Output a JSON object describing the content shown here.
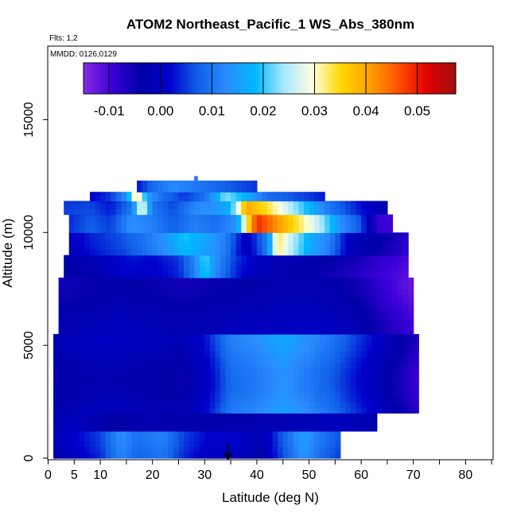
{
  "chart_data": {
    "type": "heatmap",
    "title": "ATOM2 Northeast_Pacific_1 WS_Abs_380nm",
    "flights_note": "Flts: 1,2",
    "dates_note": "MMDD: 0126,0129",
    "xlabel": "Latitude (deg N)",
    "ylabel": "Altitude (m)",
    "xlim": [
      0,
      85
    ],
    "ylim": [
      0,
      18000
    ],
    "x_ticks": [
      0,
      5,
      10,
      20,
      30,
      40,
      50,
      60,
      70,
      80
    ],
    "x_minor_ticks": [
      15,
      25,
      35,
      45,
      55,
      65,
      75,
      85
    ],
    "y_ticks": [
      0,
      5000,
      10000,
      15000
    ],
    "colorbar": {
      "min": -0.015,
      "max": 0.0575,
      "ticks": [
        "-0.01",
        "0.00",
        "0.01",
        "0.02",
        "0.03",
        "0.04",
        "0.05"
      ],
      "tick_values": [
        -0.01,
        0.0,
        0.01,
        0.02,
        0.03,
        0.04,
        0.05
      ],
      "colors": [
        "#8a2be2",
        "#3b00d8",
        "#0000a8",
        "#0000cc",
        "#1060e8",
        "#2a8cff",
        "#00b8ff",
        "#a8e8ff",
        "#ffffe0",
        "#ffd700",
        "#ffa000",
        "#ff5000",
        "#e00000",
        "#a01010"
      ]
    },
    "marker": {
      "x": 34.5,
      "direction": "down-arrow"
    },
    "profiles": [
      {
        "alt": [
          0,
          1200
        ],
        "lat": [
          1,
          56
        ],
        "vals": [
          [
            1,
            -0.003
          ],
          [
            5,
            0.0
          ],
          [
            10,
            0.004
          ],
          [
            14,
            0.012
          ],
          [
            17,
            0.008
          ],
          [
            22,
            0.01
          ],
          [
            26,
            0.004
          ],
          [
            31,
            0.0
          ],
          [
            36,
            0.0
          ],
          [
            41,
            -0.004
          ],
          [
            44,
            0.004
          ],
          [
            49,
            0.014
          ],
          [
            52,
            0.009
          ],
          [
            56,
            0.005
          ]
        ]
      },
      {
        "alt": [
          1200,
          2000
        ],
        "lat": [
          1,
          63
        ],
        "vals": [
          [
            1,
            -0.003
          ],
          [
            6,
            -0.002
          ],
          [
            12,
            -0.005
          ],
          [
            20,
            -0.004
          ],
          [
            30,
            -0.005
          ],
          [
            40,
            -0.004
          ],
          [
            50,
            -0.003
          ],
          [
            56,
            -0.002
          ],
          [
            63,
            -0.004
          ]
        ]
      },
      {
        "alt": [
          2000,
          5500
        ],
        "lat": [
          1,
          71
        ],
        "vals": [
          [
            1,
            -0.003
          ],
          [
            6,
            -0.002
          ],
          [
            10,
            -0.001
          ],
          [
            18,
            -0.002
          ],
          [
            26,
            -0.003
          ],
          [
            30,
            0.001
          ],
          [
            35,
            0.01
          ],
          [
            40,
            0.012
          ],
          [
            45,
            0.015
          ],
          [
            50,
            0.012
          ],
          [
            55,
            0.008
          ],
          [
            60,
            0.003
          ],
          [
            65,
            -0.002
          ],
          [
            68,
            -0.005
          ],
          [
            71,
            -0.008
          ]
        ]
      },
      {
        "alt": [
          5500,
          8000
        ],
        "lat": [
          2,
          70
        ],
        "vals": [
          [
            2,
            -0.004
          ],
          [
            8,
            -0.003
          ],
          [
            14,
            -0.002
          ],
          [
            20,
            -0.003
          ],
          [
            26,
            -0.004
          ],
          [
            32,
            -0.003
          ],
          [
            40,
            -0.002
          ],
          [
            48,
            -0.001
          ],
          [
            55,
            -0.002
          ],
          [
            60,
            -0.004
          ],
          [
            65,
            -0.008
          ],
          [
            70,
            -0.011
          ]
        ]
      },
      {
        "alt": [
          8000,
          9000
        ],
        "lat": [
          3,
          69
        ],
        "vals": [
          [
            3,
            -0.003
          ],
          [
            10,
            -0.001
          ],
          [
            16,
            0.003
          ],
          [
            20,
            0.002
          ],
          [
            25,
            0.005
          ],
          [
            28,
            0.012
          ],
          [
            30,
            0.022
          ],
          [
            32,
            0.014
          ],
          [
            36,
            0.005
          ],
          [
            40,
            0.0
          ],
          [
            46,
            -0.002
          ],
          [
            52,
            -0.003
          ],
          [
            58,
            -0.005
          ],
          [
            64,
            -0.008
          ],
          [
            69,
            -0.01
          ]
        ]
      },
      {
        "alt": [
          9000,
          10000
        ],
        "lat": [
          4,
          69
        ],
        "vals": [
          [
            4,
            -0.002
          ],
          [
            8,
            0.002
          ],
          [
            14,
            0.005
          ],
          [
            18,
            0.008
          ],
          [
            22,
            0.012
          ],
          [
            26,
            0.018
          ],
          [
            30,
            0.015
          ],
          [
            34,
            0.01
          ],
          [
            38,
            -0.002
          ],
          [
            42,
            0.01
          ],
          [
            44,
            0.032
          ],
          [
            46,
            0.026
          ],
          [
            50,
            0.016
          ],
          [
            54,
            0.01
          ],
          [
            58,
            -0.002
          ],
          [
            62,
            -0.004
          ],
          [
            66,
            -0.007
          ],
          [
            69,
            -0.009
          ]
        ]
      },
      {
        "alt": [
          10000,
          10800
        ],
        "lat": [
          4,
          66
        ],
        "vals": [
          [
            4,
            0.003
          ],
          [
            8,
            0.006
          ],
          [
            12,
            0.004
          ],
          [
            16,
            0.012
          ],
          [
            20,
            0.01
          ],
          [
            24,
            0.006
          ],
          [
            28,
            0.01
          ],
          [
            32,
            0.008
          ],
          [
            36,
            0.012
          ],
          [
            40,
            0.048
          ],
          [
            44,
            0.04
          ],
          [
            48,
            0.032
          ],
          [
            52,
            0.024
          ],
          [
            56,
            0.012
          ],
          [
            60,
            0.005
          ],
          [
            63,
            -0.01
          ],
          [
            66,
            -0.011
          ]
        ]
      },
      {
        "alt": [
          10800,
          11400
        ],
        "lat": [
          3,
          65
        ],
        "vals": [
          [
            3,
            0.005
          ],
          [
            8,
            0.006
          ],
          [
            12,
            0.003
          ],
          [
            16,
            0.01
          ],
          [
            18,
            0.03
          ],
          [
            20,
            0.01
          ],
          [
            24,
            0.006
          ],
          [
            28,
            0.012
          ],
          [
            32,
            0.014
          ],
          [
            35,
            0.018
          ],
          [
            38,
            0.04
          ],
          [
            42,
            0.034
          ],
          [
            46,
            0.026
          ],
          [
            50,
            0.018
          ],
          [
            54,
            0.01
          ],
          [
            58,
            0.005
          ],
          [
            62,
            0.0
          ],
          [
            65,
            -0.003
          ]
        ]
      },
      {
        "alt": [
          11400,
          11800
        ],
        "lat": [
          8,
          53
        ],
        "vals": [
          [
            8,
            0.002
          ],
          [
            12,
            0.006
          ],
          [
            15,
            0.014
          ],
          [
            17,
            0.036
          ],
          [
            19,
            0.016
          ],
          [
            22,
            0.01
          ],
          [
            26,
            0.006
          ],
          [
            30,
            0.01
          ],
          [
            34,
            0.024
          ],
          [
            38,
            0.018
          ],
          [
            42,
            0.01
          ],
          [
            46,
            0.008
          ],
          [
            50,
            0.006
          ],
          [
            53,
            0.004
          ]
        ]
      },
      {
        "alt": [
          11800,
          12300
        ],
        "lat": [
          17,
          40
        ],
        "vals": [
          [
            17,
            0.004
          ],
          [
            20,
            0.01
          ],
          [
            24,
            0.014
          ],
          [
            28,
            0.012
          ],
          [
            32,
            0.01
          ],
          [
            36,
            0.008
          ],
          [
            40,
            0.006
          ]
        ]
      },
      {
        "alt": [
          12300,
          12500
        ],
        "lat": [
          28,
          28.6
        ],
        "vals": [
          [
            28,
            0.012
          ],
          [
            28.6,
            0.012
          ]
        ]
      }
    ]
  }
}
